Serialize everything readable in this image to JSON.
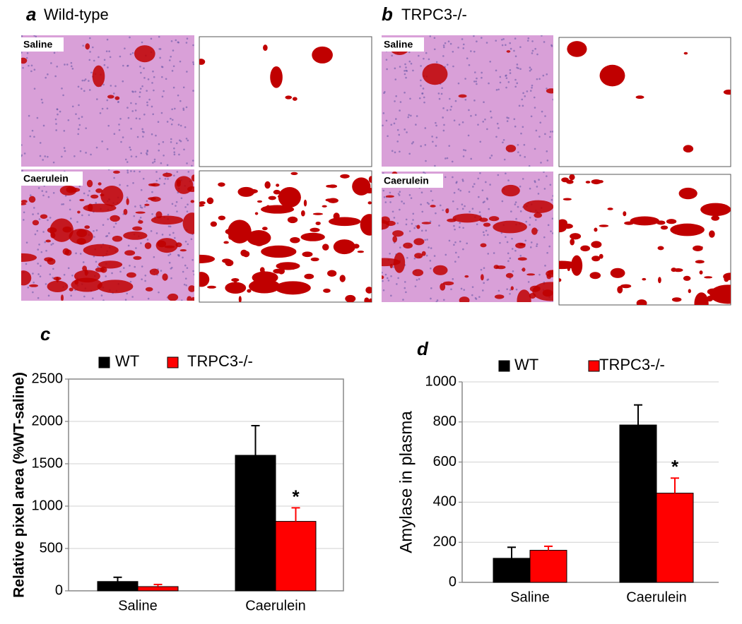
{
  "panels": [
    {
      "label": "a",
      "title": "Wild-type",
      "images": [
        "Saline",
        "Caerulein"
      ]
    },
    {
      "label": "b",
      "title": "TRPC3-/-",
      "images": [
        "Saline",
        "Caerulein"
      ]
    }
  ],
  "chart_data": [
    {
      "type": "bar",
      "label": "c",
      "ylabel": "Relative pixel area (%WT-saline)",
      "categories": [
        "Saline",
        "Caerulein"
      ],
      "series": [
        {
          "name": "WT",
          "color": "#000000",
          "values": [
            110,
            1600
          ],
          "errors": [
            50,
            350
          ]
        },
        {
          "name": "TRPC3-/-",
          "color": "#ff0000",
          "values": [
            50,
            820
          ],
          "errors": [
            25,
            160
          ]
        }
      ],
      "annotations": [
        {
          "text": "*",
          "series": 1,
          "category": 1
        }
      ],
      "ylim": [
        0,
        2500
      ],
      "yticks": [
        0,
        500,
        1000,
        1500,
        2000,
        2500
      ],
      "grid": true
    },
    {
      "type": "bar",
      "label": "d",
      "ylabel": "Amylase in plasma",
      "categories": [
        "Saline",
        "Caerulein"
      ],
      "series": [
        {
          "name": "WT",
          "color": "#000000",
          "values": [
            120,
            785
          ],
          "errors": [
            55,
            100
          ]
        },
        {
          "name": "TRPC3-/-",
          "color": "#ff0000",
          "values": [
            160,
            445
          ],
          "errors": [
            20,
            75
          ]
        }
      ],
      "annotations": [
        {
          "text": "*",
          "series": 1,
          "category": 1
        }
      ],
      "ylim": [
        0,
        1000
      ],
      "yticks": [
        0,
        200,
        400,
        600,
        800,
        1000
      ],
      "grid": true
    }
  ]
}
